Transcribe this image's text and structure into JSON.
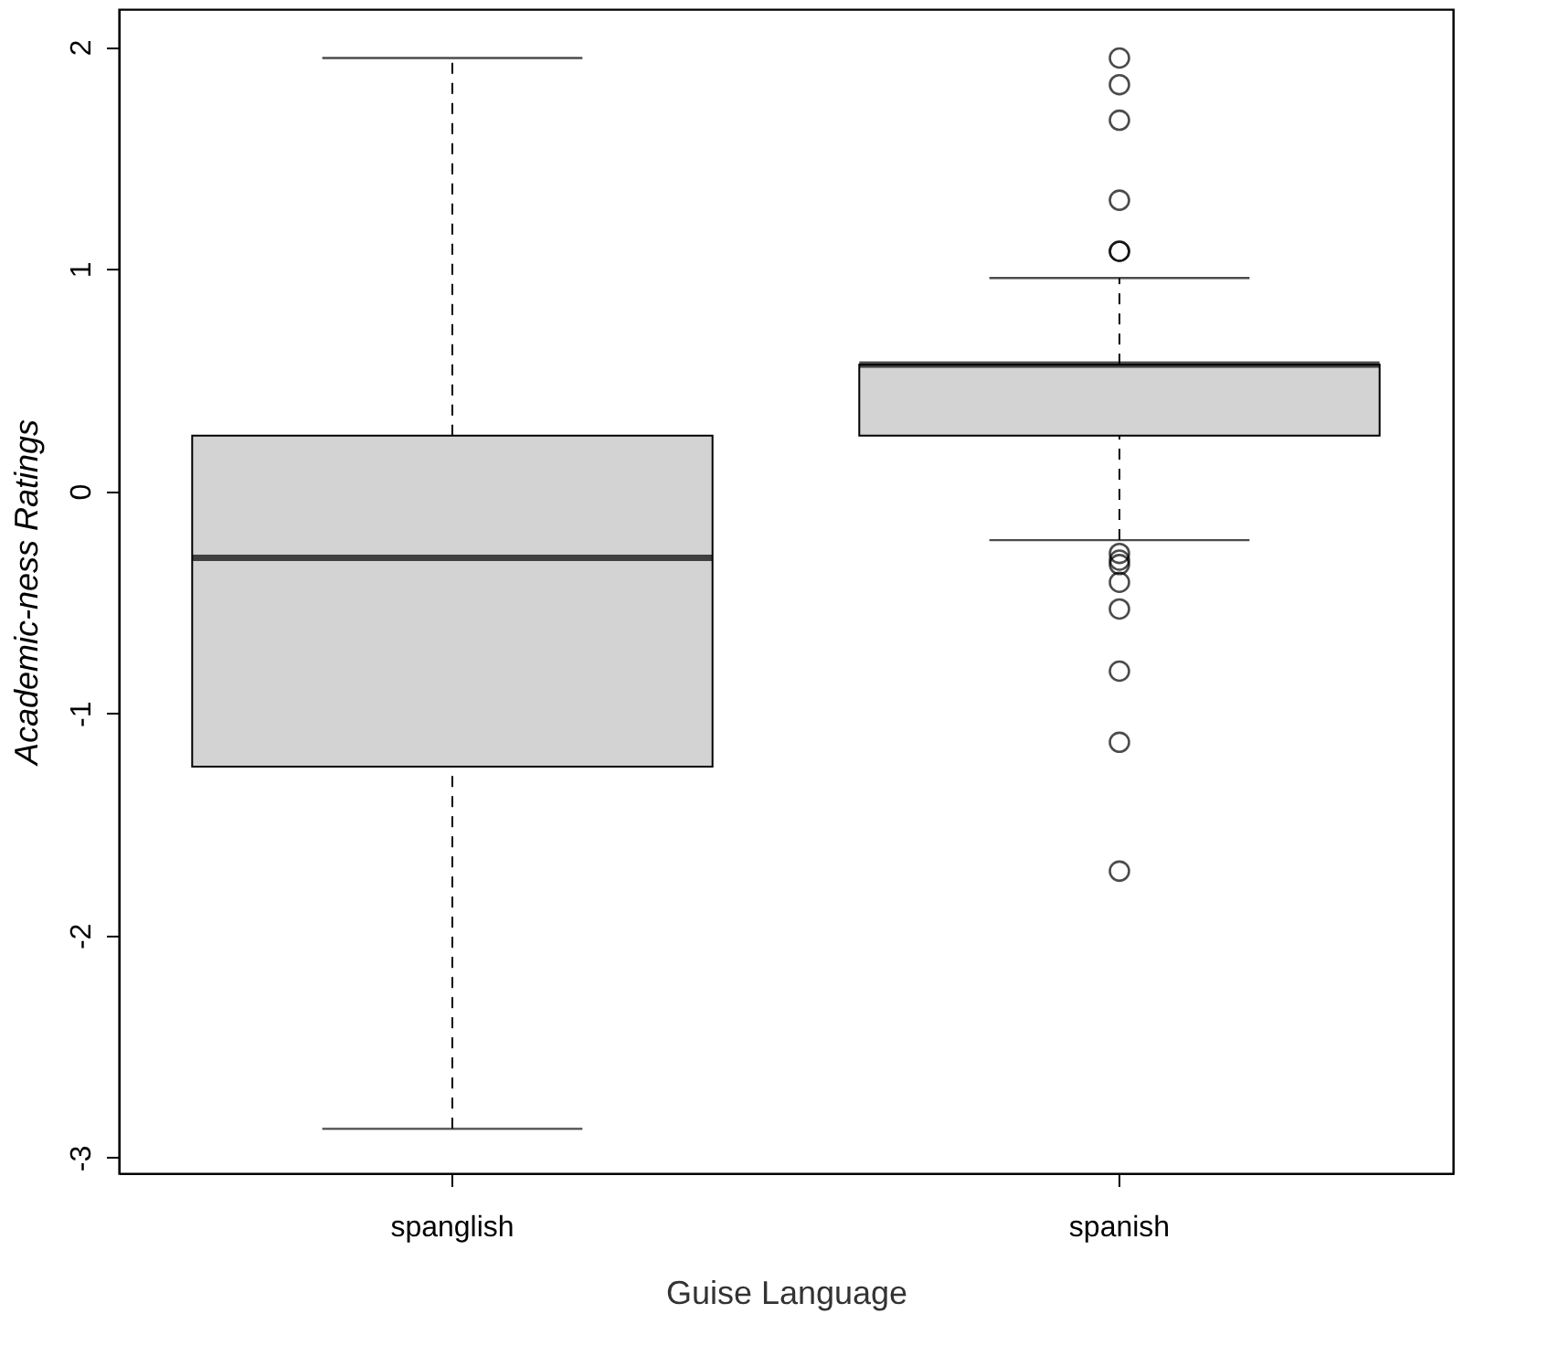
{
  "chart_data": {
    "type": "box",
    "xlabel": "Guise Language",
    "ylabel": "Academic-ness Ratings",
    "categories": [
      "spanglish",
      "spanish"
    ],
    "color": "#d3d3d3",
    "boxes": [
      {
        "low": -2.87,
        "q1": -1.24,
        "median": -0.3,
        "q3": 0.25,
        "high": 1.95
      },
      {
        "low": -0.22,
        "q1": 0.25,
        "median": 0.57,
        "q3": 0.57,
        "high": 0.96,
        "outliers": [
          1.95,
          1.83,
          1.67,
          1.31,
          1.08,
          1.08,
          -0.28,
          -0.31,
          -0.33,
          -0.41,
          -0.53,
          -0.81,
          -1.13,
          -1.71
        ]
      }
    ],
    "ylim": [
      -3.07,
      2.17
    ],
    "yticks": [
      -3,
      -2,
      -1,
      0,
      1,
      2
    ],
    "grid": false,
    "marker": "circle"
  }
}
